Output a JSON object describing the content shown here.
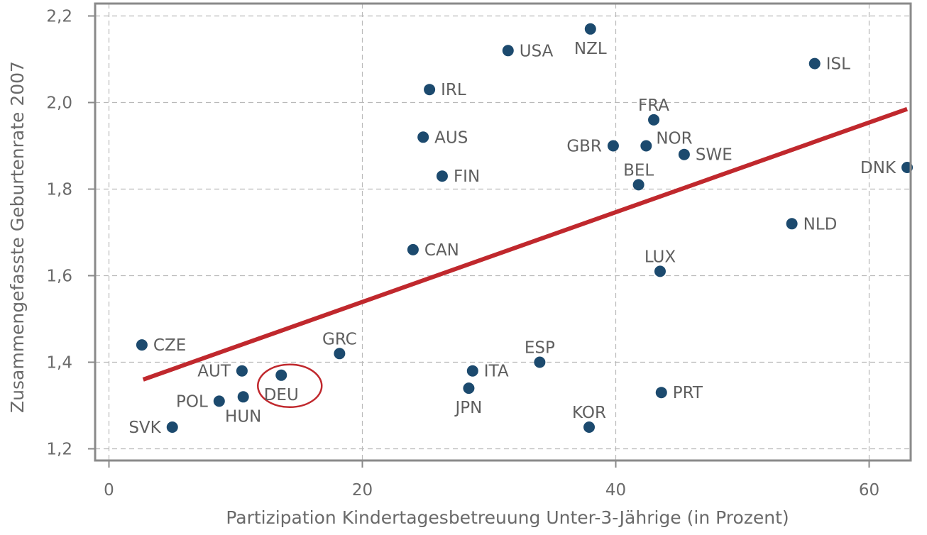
{
  "chart_data": {
    "type": "scatter",
    "title": "",
    "xlabel": "Partizipation Kindertagesbetreuung Unter-3-Jährige (in Prozent)",
    "ylabel": "Zusammengefasste Geburtenrate 2007",
    "xlim": [
      -1,
      64
    ],
    "ylim": [
      1.17,
      2.24
    ],
    "x_ticks": [
      0,
      20,
      40,
      60
    ],
    "x_tick_labels": [
      "0",
      "20",
      "40",
      "60"
    ],
    "y_ticks": [
      1.2,
      1.4,
      1.6,
      1.8,
      2.0,
      2.2
    ],
    "y_tick_labels": [
      "1,2",
      "1,4",
      "1,6",
      "1,8",
      "2,0",
      "2,2"
    ],
    "grid": true,
    "legend": "none",
    "colors": {
      "points": "#1c4a6e",
      "trend": "#c0282d",
      "highlight": "#c0282d",
      "frame": "#8a8a8a",
      "grid": "#b9b9b9",
      "text": "#6a6a6a"
    },
    "points": [
      {
        "label": "NZL",
        "x": 38.0,
        "y": 2.17,
        "label_pos": "below"
      },
      {
        "label": "USA",
        "x": 31.5,
        "y": 2.12,
        "label_pos": "right"
      },
      {
        "label": "ISL",
        "x": 55.7,
        "y": 2.09,
        "label_pos": "right"
      },
      {
        "label": "IRL",
        "x": 25.3,
        "y": 2.03,
        "label_pos": "right"
      },
      {
        "label": "FRA",
        "x": 43.0,
        "y": 1.96,
        "label_pos": "above"
      },
      {
        "label": "AUS",
        "x": 24.8,
        "y": 1.92,
        "label_pos": "right"
      },
      {
        "label": "GBR",
        "x": 39.8,
        "y": 1.9,
        "label_pos": "left"
      },
      {
        "label": "NOR",
        "x": 42.4,
        "y": 1.9,
        "label_pos": "above-right"
      },
      {
        "label": "SWE",
        "x": 45.4,
        "y": 1.88,
        "label_pos": "right"
      },
      {
        "label": "DNK",
        "x": 63.0,
        "y": 1.85,
        "label_pos": "left"
      },
      {
        "label": "FIN",
        "x": 26.3,
        "y": 1.83,
        "label_pos": "right"
      },
      {
        "label": "BEL",
        "x": 41.8,
        "y": 1.81,
        "label_pos": "above"
      },
      {
        "label": "NLD",
        "x": 53.9,
        "y": 1.72,
        "label_pos": "right"
      },
      {
        "label": "CAN",
        "x": 24.0,
        "y": 1.66,
        "label_pos": "right"
      },
      {
        "label": "LUX",
        "x": 43.5,
        "y": 1.61,
        "label_pos": "above"
      },
      {
        "label": "CZE",
        "x": 2.6,
        "y": 1.44,
        "label_pos": "right"
      },
      {
        "label": "GRC",
        "x": 18.2,
        "y": 1.42,
        "label_pos": "above"
      },
      {
        "label": "ESP",
        "x": 34.0,
        "y": 1.4,
        "label_pos": "above"
      },
      {
        "label": "AUT",
        "x": 10.5,
        "y": 1.38,
        "label_pos": "left"
      },
      {
        "label": "ITA",
        "x": 28.7,
        "y": 1.38,
        "label_pos": "right"
      },
      {
        "label": "DEU",
        "x": 13.6,
        "y": 1.37,
        "label_pos": "below",
        "highlighted": true
      },
      {
        "label": "JPN",
        "x": 28.4,
        "y": 1.34,
        "label_pos": "below"
      },
      {
        "label": "PRT",
        "x": 43.6,
        "y": 1.33,
        "label_pos": "right"
      },
      {
        "label": "HUN",
        "x": 10.6,
        "y": 1.32,
        "label_pos": "below"
      },
      {
        "label": "POL",
        "x": 8.7,
        "y": 1.31,
        "label_pos": "left"
      },
      {
        "label": "SVK",
        "x": 5.0,
        "y": 1.25,
        "label_pos": "left"
      },
      {
        "label": "KOR",
        "x": 37.9,
        "y": 1.25,
        "label_pos": "above"
      }
    ],
    "trend_line": {
      "x": [
        2.7,
        63.0
      ],
      "y": [
        1.36,
        1.985
      ]
    }
  }
}
